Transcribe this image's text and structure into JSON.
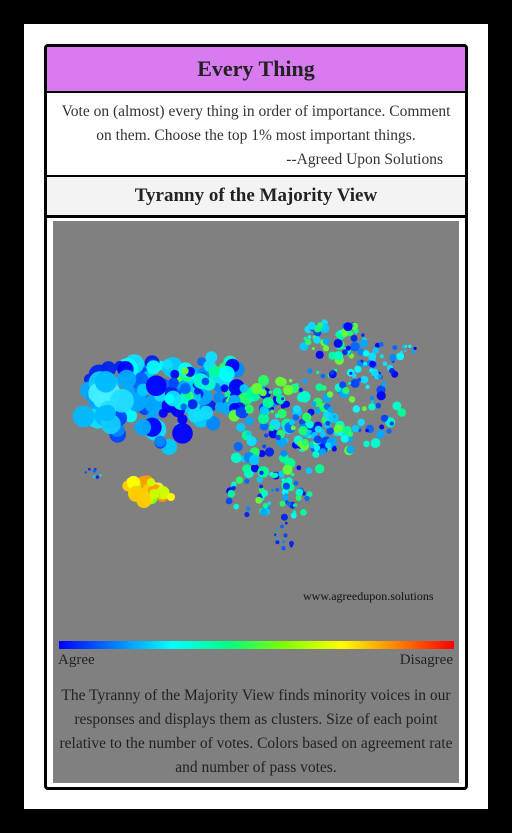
{
  "header": {
    "title": "Every Thing",
    "description": "Vote on (almost) every thing in order of importance. Comment on them. Choose the top 1% most important things.",
    "attribution": "--Agreed Upon Solutions"
  },
  "view": {
    "title": "Tyranny of the Majority View",
    "watermark": "www.agreedupon.solutions",
    "legend_left": "Agree",
    "legend_right": "Disagree",
    "footer": "The Tyranny of the Majority View finds minority voices in our responses and displays them as clusters. Size of each point relative to the number of votes. Colors based on agreement rate and number of pass votes."
  },
  "colors": {
    "title_bar": "#d87af0",
    "panel": "#808080",
    "scale": [
      "#0000ff",
      "#0080ff",
      "#00ffff",
      "#00ff80",
      "#80ff00",
      "#ffff00",
      "#ff8000",
      "#ff0000"
    ]
  }
}
